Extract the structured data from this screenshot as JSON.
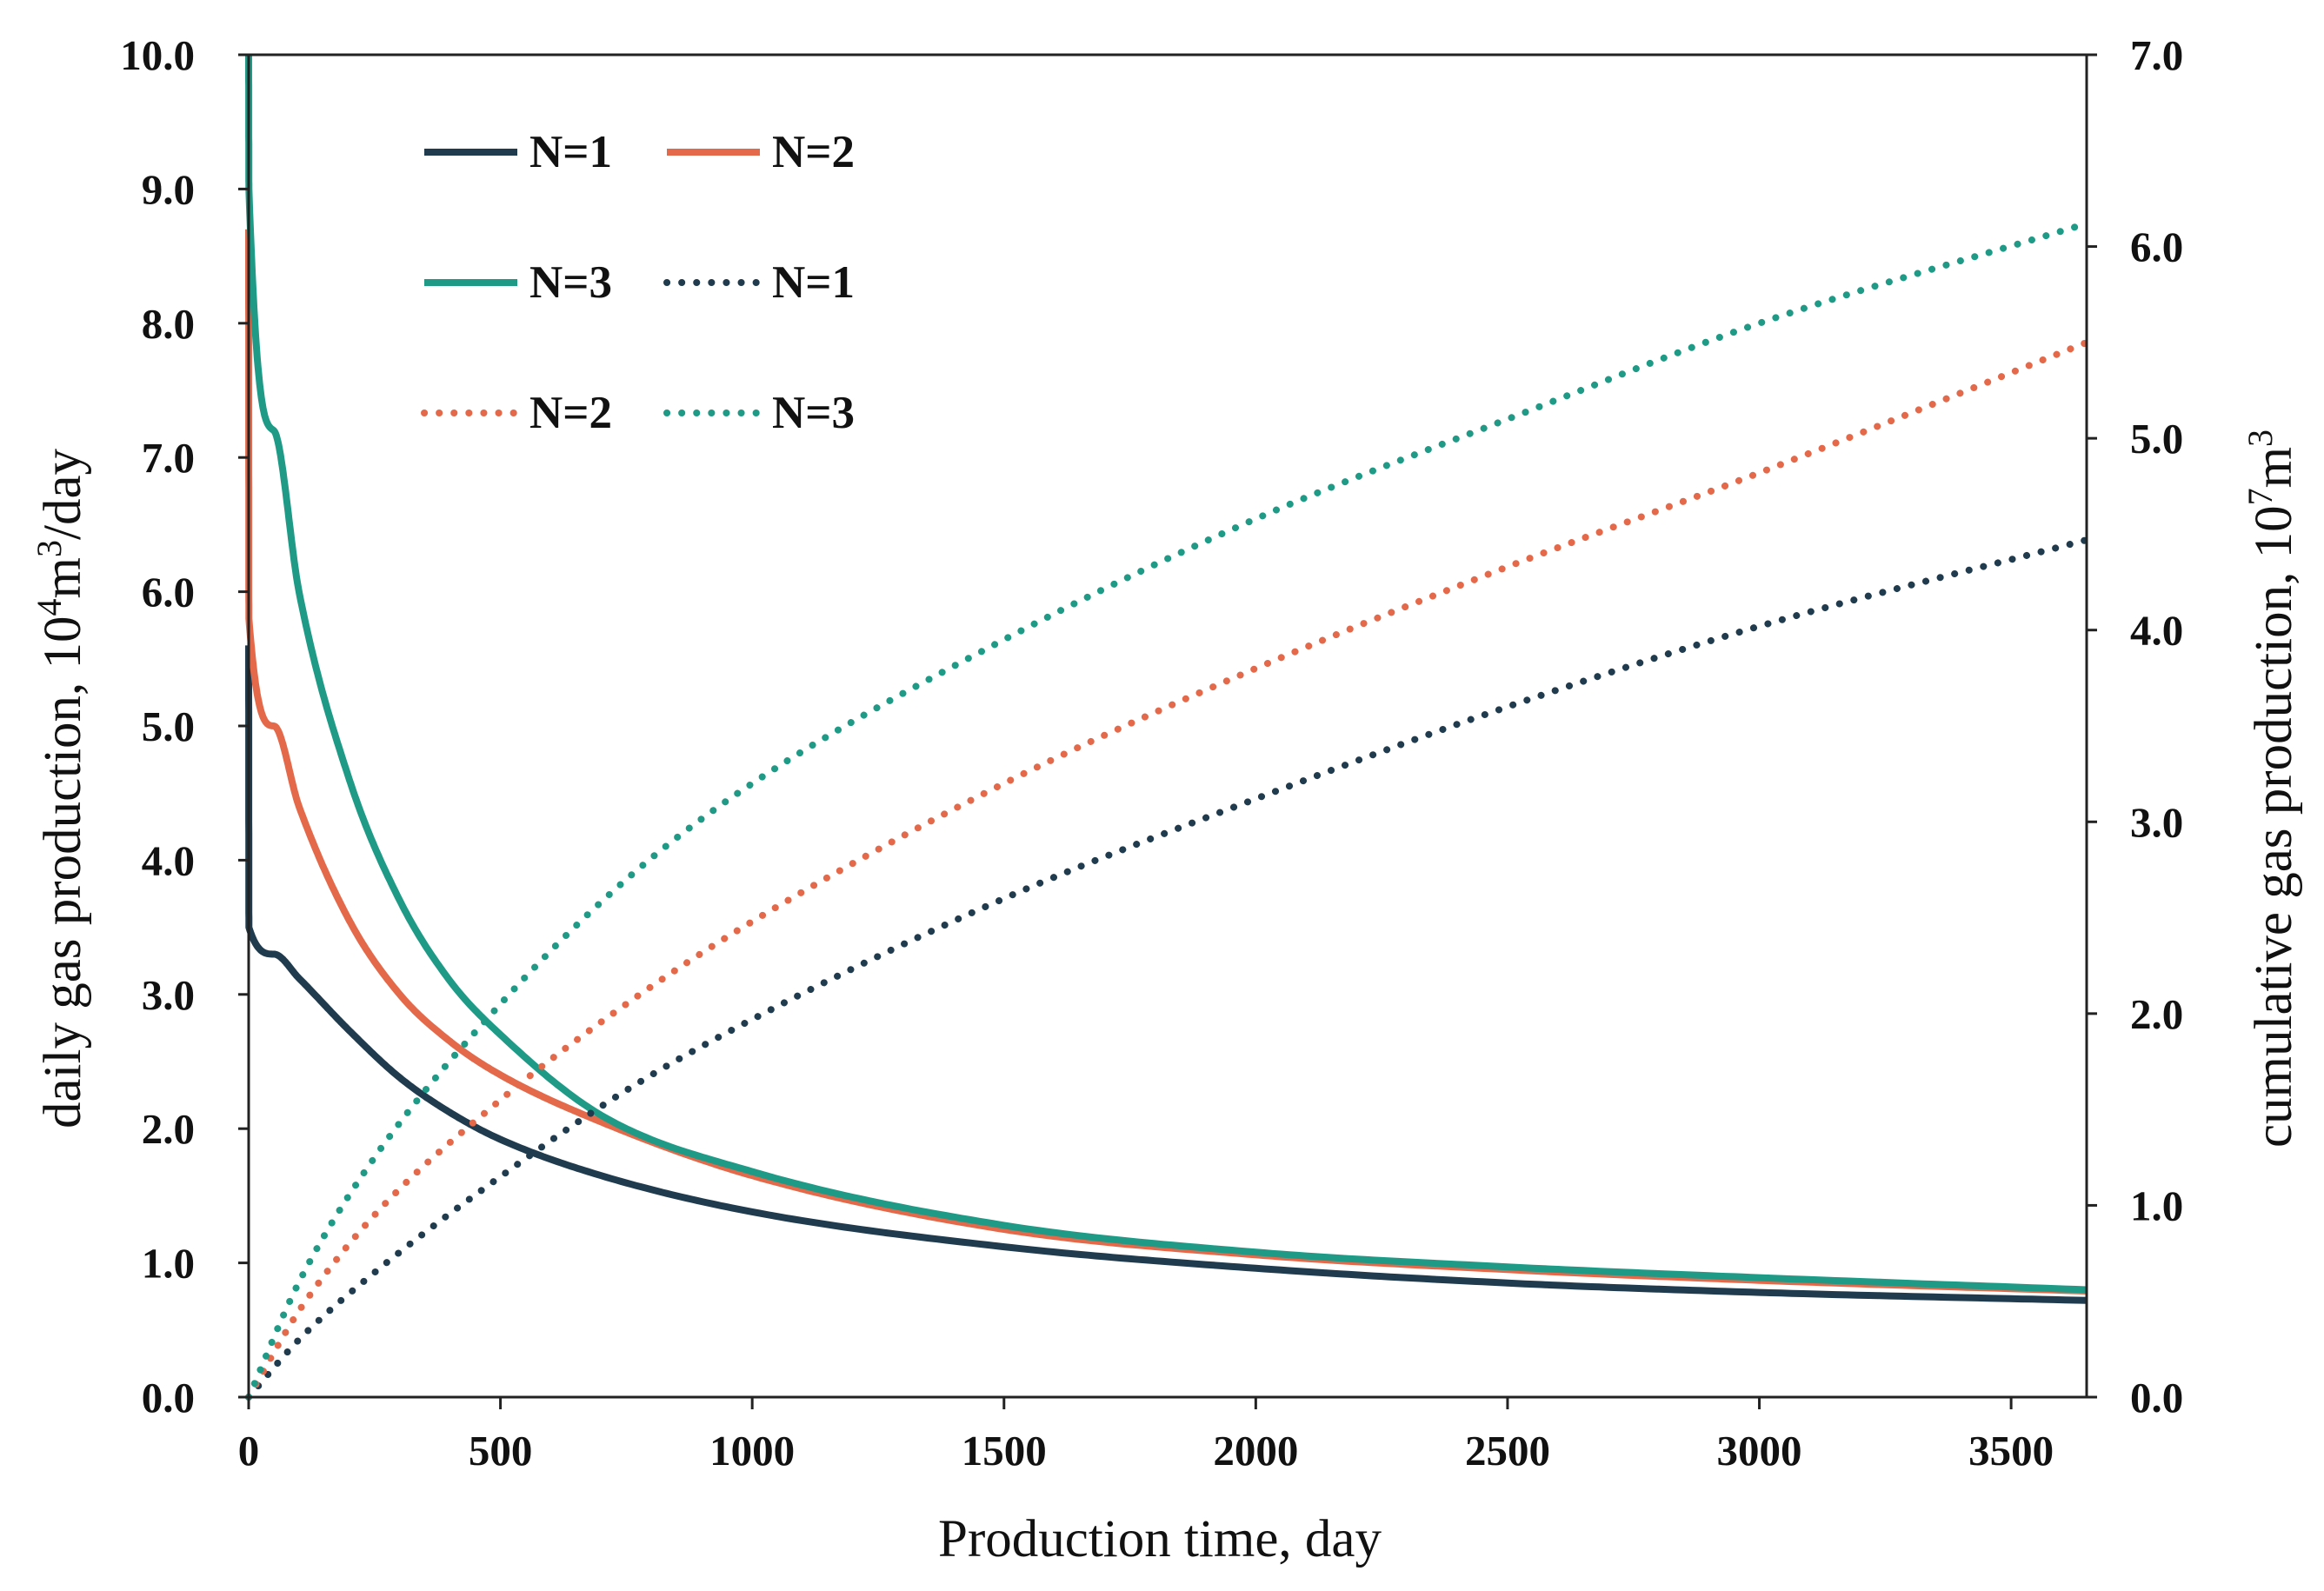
{
  "chart_data": {
    "type": "line",
    "xlabel": "Production time, day",
    "ylabel_left": {
      "text": "daily gas production, 10",
      "sup": "4",
      "text2": "m",
      "sup2": "3",
      "text3": "/day"
    },
    "ylabel_right": {
      "text": "cumulative gas production, 10",
      "sup": "7",
      "text2": "m",
      "sup2": "3"
    },
    "xlim": [
      0,
      3650
    ],
    "ylim_left": [
      0,
      10
    ],
    "ylim_right": [
      0,
      7
    ],
    "x_ticks": [
      "0",
      "500",
      "1000",
      "1500",
      "2000",
      "2500",
      "3000",
      "3500"
    ],
    "x_tick_values": [
      0,
      500,
      1000,
      1500,
      2000,
      2500,
      3000,
      3500
    ],
    "y_left_ticks": [
      "0.0",
      "1.0",
      "2.0",
      "3.0",
      "4.0",
      "5.0",
      "6.0",
      "7.0",
      "8.0",
      "9.0",
      "10.0"
    ],
    "y_left_tick_values": [
      0,
      1,
      2,
      3,
      4,
      5,
      6,
      7,
      8,
      9,
      10
    ],
    "y_right_ticks": [
      "0.0",
      "1.0",
      "2.0",
      "3.0",
      "4.0",
      "5.0",
      "6.0",
      "7.0"
    ],
    "y_right_tick_values": [
      0,
      1,
      2,
      3,
      4,
      5,
      6,
      7
    ],
    "legend_position": "top-left",
    "series": [
      {
        "name": "N=1",
        "axis": "left",
        "style": "solid",
        "color": "#1f3b4d",
        "x": [
          0,
          0.5,
          50,
          100,
          200,
          300,
          400,
          500,
          700,
          1000,
          1500,
          2000,
          2500,
          3000,
          3650
        ],
        "y": [
          5.6,
          3.5,
          3.3,
          3.12,
          2.73,
          2.38,
          2.12,
          1.92,
          1.65,
          1.38,
          1.12,
          0.96,
          0.85,
          0.78,
          0.72
        ]
      },
      {
        "name": "N=2",
        "axis": "left",
        "style": "solid",
        "color": "#e4694a",
        "x": [
          0,
          0.5,
          50,
          100,
          200,
          300,
          400,
          500,
          700,
          1000,
          1500,
          2000,
          2500,
          3000,
          3650
        ],
        "y": [
          8.7,
          5.8,
          5.0,
          4.4,
          3.55,
          3.0,
          2.65,
          2.4,
          2.05,
          1.65,
          1.25,
          1.06,
          0.95,
          0.87,
          0.79
        ]
      },
      {
        "name": "N=3",
        "axis": "left",
        "style": "solid",
        "color": "#1e9a87",
        "x": [
          0,
          0.5,
          50,
          100,
          200,
          300,
          400,
          500,
          700,
          1000,
          1500,
          2000,
          2500,
          3000,
          3650
        ],
        "y": [
          10.0,
          9.0,
          7.2,
          6.0,
          4.6,
          3.7,
          3.1,
          2.7,
          2.1,
          1.68,
          1.28,
          1.08,
          0.97,
          0.89,
          0.8
        ]
      },
      {
        "name": "N=1",
        "axis": "right",
        "style": "dotted",
        "color": "#1f3b4d",
        "x": [
          0,
          100,
          250,
          500,
          750,
          1000,
          1500,
          2000,
          2500,
          3000,
          3650
        ],
        "y": [
          0,
          0.3,
          0.65,
          1.15,
          1.6,
          1.97,
          2.6,
          3.12,
          3.6,
          4.02,
          4.47
        ]
      },
      {
        "name": "N=2",
        "axis": "right",
        "style": "dotted",
        "color": "#e4694a",
        "x": [
          0,
          100,
          250,
          500,
          750,
          1000,
          1500,
          2000,
          2500,
          3000,
          3650
        ],
        "y": [
          0,
          0.45,
          0.95,
          1.55,
          2.05,
          2.48,
          3.2,
          3.8,
          4.33,
          4.82,
          5.5
        ]
      },
      {
        "name": "N=3",
        "axis": "right",
        "style": "dotted",
        "color": "#1e9a87",
        "x": [
          0,
          100,
          250,
          500,
          750,
          1000,
          1500,
          2000,
          2500,
          3000,
          3650
        ],
        "y": [
          0,
          0.6,
          1.25,
          2.05,
          2.7,
          3.2,
          3.95,
          4.58,
          5.1,
          5.6,
          6.12
        ]
      }
    ]
  }
}
